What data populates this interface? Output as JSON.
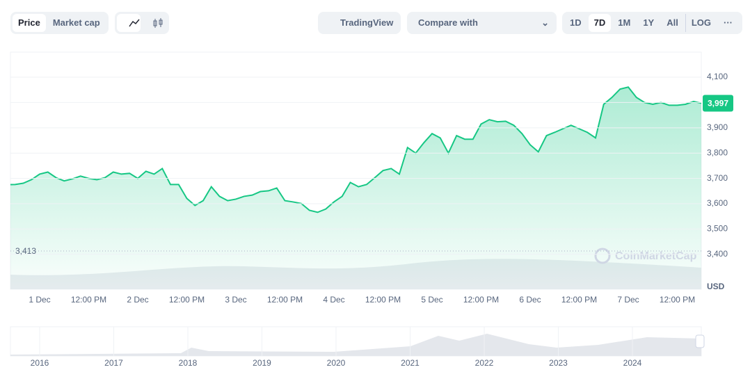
{
  "toolbar": {
    "metric_tabs": [
      "Price",
      "Market cap"
    ],
    "tradingview": "TradingView",
    "compare": "Compare with",
    "ranges": [
      "1D",
      "7D",
      "1M",
      "1Y",
      "All"
    ],
    "log": "LOG"
  },
  "chart_data": {
    "type": "line",
    "categories": [
      null,
      null,
      null,
      null,
      "1 Dec",
      null,
      null,
      null,
      null,
      null,
      "12:00 PM",
      null,
      null,
      null,
      null,
      null,
      "2 Dec",
      null,
      null,
      null,
      null,
      null,
      "12:00 PM",
      null,
      null,
      null,
      null,
      null,
      "3 Dec",
      null,
      null,
      null,
      null,
      null,
      "12:00 PM",
      null,
      null,
      null,
      null,
      null,
      "4 Dec",
      null,
      null,
      null,
      null,
      null,
      "12:00 PM",
      null,
      null,
      null,
      null,
      null,
      "5 Dec",
      null,
      null,
      null,
      null,
      null,
      "12:00 PM",
      null,
      null,
      null,
      null,
      null,
      "6 Dec",
      null,
      null,
      null,
      null,
      null,
      "12:00 PM",
      null,
      null,
      null,
      null,
      null,
      "7 Dec",
      null,
      null,
      null,
      null,
      null,
      "12:00 PM",
      null,
      null,
      null
    ],
    "values": [
      3675,
      3676,
      3681,
      3695,
      3717,
      3725,
      3703,
      3690,
      3698,
      3709,
      3700,
      3695,
      3703,
      3725,
      3717,
      3720,
      3700,
      3728,
      3717,
      3739,
      3676,
      3676,
      3621,
      3593,
      3612,
      3667,
      3629,
      3612,
      3618,
      3629,
      3634,
      3648,
      3651,
      3662,
      3612,
      3607,
      3601,
      3574,
      3566,
      3579,
      3607,
      3629,
      3684,
      3667,
      3676,
      3703,
      3731,
      3739,
      3717,
      3822,
      3800,
      3841,
      3877,
      3860,
      3800,
      3869,
      3855,
      3855,
      3915,
      3932,
      3924,
      3926,
      3910,
      3877,
      3833,
      3805,
      3869,
      3882,
      3896,
      3910,
      3896,
      3882,
      3860,
      3993,
      4020,
      4053,
      4061,
      4020,
      4000,
      3993,
      4000,
      3989,
      3989,
      3993,
      4004,
      3997
    ],
    "color": "#16c784",
    "ylim": [
      3262,
      4199
    ],
    "yticks": [
      {
        "value": 3400,
        "label": "3,400"
      },
      {
        "value": 3500,
        "label": "3,500"
      },
      {
        "value": 3600,
        "label": "3,600"
      },
      {
        "value": 3700,
        "label": "3,700"
      },
      {
        "value": 3800,
        "label": "3,800"
      },
      {
        "value": 3900,
        "label": "3,900"
      },
      {
        "value": 4000,
        "label": "4,000"
      },
      {
        "value": 4100,
        "label": "4,100"
      }
    ],
    "grid": true,
    "low_marker": {
      "value": 3413,
      "label": "3,413"
    },
    "current_price": {
      "value": 3997,
      "label": "3,997"
    },
    "currency": "USD",
    "watermark": "CoinMarketCap"
  },
  "navigator": {
    "years": [
      "2016",
      "2017",
      "2018",
      "2019",
      "2020",
      "2021",
      "2022",
      "2023",
      "2024"
    ]
  }
}
